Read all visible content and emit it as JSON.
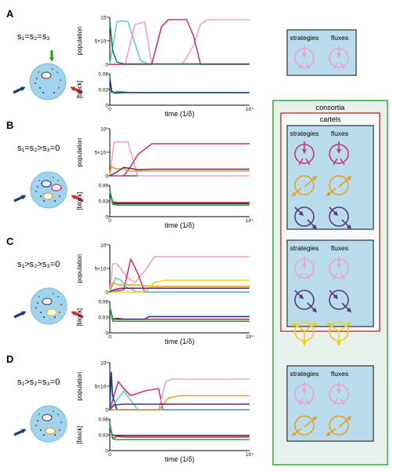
{
  "colors": {
    "pink": "#f0a0c8",
    "magenta": "#c8367a",
    "cyan": "#66cccc",
    "orange": "#e6a020",
    "yellow": "#f2cc1a",
    "purple": "#5a3a78",
    "darkgreen": "#1a8040",
    "red": "#d22b2b",
    "navy": "#1e3a8a",
    "green_block": "#2aa12a",
    "box_fill": "#b8dced",
    "box_stroke": "#333333",
    "consortia_fill": "#e7f2ec",
    "consortia_stroke": "#2aa12a",
    "cartels_stroke": "#d92b2b",
    "cell_fill": "#9fd3ee"
  },
  "panels": [
    {
      "letter": "A",
      "condition": "s₁=s₂=s₃"
    },
    {
      "letter": "B",
      "condition": "s₁=s₂>s₃=0"
    },
    {
      "letter": "C",
      "condition": "s₁>s₂>s₃=0"
    },
    {
      "letter": "D",
      "condition": "s₁>s₂=s₃=0"
    }
  ],
  "axes": {
    "population_label": "population",
    "block_label": "[block]",
    "time_label": "time (1/δ)",
    "x_tick_zero": "0",
    "x_tick_max": "10⁴",
    "pop_tick_top": "10⁵",
    "pop_tick_mid": "5×10⁴",
    "pop_tick_zero": "0",
    "block_tick_top": "0.06",
    "block_tick_mid": "0.03",
    "block_tick_zero": "0"
  },
  "legend": {
    "consortia": "consortia",
    "cartels": "cartels",
    "strategies": "strategies",
    "fluxes": "fluxes"
  },
  "chart_data": [
    {
      "type": "line",
      "panel": "A",
      "plot": "population",
      "xlim": [
        0,
        10000
      ],
      "ylim": [
        0,
        100000
      ],
      "series": [
        {
          "color": "cyan",
          "x": [
            0,
            500,
            700,
            1100,
            1300,
            2200,
            2800,
            10000
          ],
          "y": [
            0,
            90000,
            92000,
            92000,
            90000,
            8000,
            0,
            0
          ]
        },
        {
          "color": "pink",
          "x": [
            0,
            1100,
            1800,
            2500,
            3000,
            10000
          ],
          "y": [
            0,
            0,
            85000,
            90000,
            0,
            0
          ]
        },
        {
          "color": "pink",
          "x": [
            0,
            5200,
            6000,
            6500,
            7000,
            10000
          ],
          "y": [
            0,
            0,
            40000,
            85000,
            95000,
            95000
          ]
        },
        {
          "color": "magenta",
          "x": [
            0,
            3000,
            3700,
            4200,
            5500,
            6000,
            6500,
            10000
          ],
          "y": [
            0,
            0,
            80000,
            95000,
            95000,
            60000,
            0,
            0
          ]
        },
        {
          "color": "darkgreen",
          "x": [
            0,
            200,
            500,
            1000,
            10000
          ],
          "y": [
            90000,
            30000,
            5000,
            1000,
            1000
          ]
        }
      ]
    },
    {
      "type": "line",
      "panel": "A",
      "plot": "block",
      "xlim": [
        0,
        10000
      ],
      "ylim": [
        0,
        0.06
      ],
      "series": [
        {
          "color": "green_block",
          "x": [
            0,
            120,
            300,
            600,
            1500,
            3000,
            10000
          ],
          "y": [
            0.055,
            0.025,
            0.024,
            0.026,
            0.024,
            0.024,
            0.024
          ]
        },
        {
          "color": "navy",
          "x": [
            0,
            150,
            400,
            1000,
            10000
          ],
          "y": [
            0.05,
            0.026,
            0.023,
            0.024,
            0.024
          ]
        }
      ]
    },
    {
      "type": "line",
      "panel": "B",
      "plot": "population",
      "xlim": [
        0,
        10000
      ],
      "ylim": [
        0,
        100000
      ],
      "series": [
        {
          "color": "pink",
          "x": [
            0,
            300,
            500,
            1300,
            2000,
            10000
          ],
          "y": [
            0,
            70000,
            72000,
            72000,
            0,
            0
          ]
        },
        {
          "color": "magenta",
          "x": [
            0,
            1000,
            1500,
            2000,
            3000,
            10000
          ],
          "y": [
            0,
            0,
            20000,
            45000,
            68000,
            68000
          ]
        },
        {
          "color": "orange",
          "x": [
            0,
            100,
            400,
            1000,
            1400,
            10000
          ],
          "y": [
            0,
            20000,
            15000,
            15000,
            10000,
            10000
          ]
        },
        {
          "color": "purple",
          "x": [
            0,
            500,
            1000,
            2000,
            3000,
            10000
          ],
          "y": [
            0,
            8000,
            18000,
            13000,
            14000,
            14000
          ]
        }
      ]
    },
    {
      "type": "line",
      "panel": "B",
      "plot": "block",
      "xlim": [
        0,
        10000
      ],
      "ylim": [
        0,
        0.06
      ],
      "series": [
        {
          "color": "red",
          "x": [
            0,
            200,
            500,
            1500,
            10000
          ],
          "y": [
            0.05,
            0.028,
            0.027,
            0.027,
            0.027
          ]
        },
        {
          "color": "navy",
          "x": [
            0,
            200,
            500,
            10000
          ],
          "y": [
            0.045,
            0.026,
            0.025,
            0.025
          ]
        },
        {
          "color": "green_block",
          "x": [
            0,
            200,
            500,
            10000
          ],
          "y": [
            0.05,
            0.024,
            0.022,
            0.022
          ]
        }
      ]
    },
    {
      "type": "line",
      "panel": "C",
      "plot": "population",
      "xlim": [
        0,
        10000
      ],
      "ylim": [
        0,
        100000
      ],
      "series": [
        {
          "color": "pink",
          "x": [
            0,
            200,
            500,
            1300,
            1800,
            2500,
            3200,
            10000
          ],
          "y": [
            0,
            60000,
            60000,
            30000,
            20000,
            45000,
            75000,
            75000
          ]
        },
        {
          "color": "magenta",
          "x": [
            0,
            1000,
            1500,
            2000,
            2500,
            10000
          ],
          "y": [
            0,
            5000,
            70000,
            40000,
            0,
            0
          ]
        },
        {
          "color": "cyan",
          "x": [
            0,
            400,
            800,
            1200,
            2000,
            10000
          ],
          "y": [
            0,
            30000,
            25000,
            10000,
            0,
            0
          ]
        },
        {
          "color": "orange",
          "x": [
            0,
            200,
            600,
            2000,
            3000,
            10000
          ],
          "y": [
            0,
            20000,
            15000,
            15000,
            12000,
            12000
          ]
        },
        {
          "color": "yellow",
          "x": [
            0,
            2500,
            3200,
            4000,
            10000
          ],
          "y": [
            0,
            0,
            20000,
            25000,
            25000
          ]
        },
        {
          "color": "purple",
          "x": [
            0,
            300,
            800,
            3000,
            10000
          ],
          "y": [
            0,
            5000,
            8000,
            8000,
            8000
          ]
        }
      ]
    },
    {
      "type": "line",
      "panel": "C",
      "plot": "block",
      "xlim": [
        0,
        10000
      ],
      "ylim": [
        0,
        0.06
      ],
      "series": [
        {
          "color": "red",
          "x": [
            0,
            200,
            500,
            1000,
            10000
          ],
          "y": [
            0.05,
            0.025,
            0.028,
            0.026,
            0.026
          ]
        },
        {
          "color": "navy",
          "x": [
            0,
            200,
            500,
            2500,
            2800,
            10000
          ],
          "y": [
            0.05,
            0.027,
            0.026,
            0.026,
            0.031,
            0.031
          ]
        },
        {
          "color": "green_block",
          "x": [
            0,
            200,
            400,
            10000
          ],
          "y": [
            0.05,
            0.023,
            0.022,
            0.022
          ]
        }
      ]
    },
    {
      "type": "line",
      "panel": "D",
      "plot": "population",
      "xlim": [
        0,
        10000
      ],
      "ylim": [
        0,
        100000
      ],
      "series": [
        {
          "color": "magenta",
          "x": [
            0,
            300,
            600,
            1000,
            1500,
            2500,
            3500,
            3800,
            10000
          ],
          "y": [
            0,
            30000,
            60000,
            45000,
            30000,
            40000,
            45000,
            0,
            0
          ]
        },
        {
          "color": "pink",
          "x": [
            0,
            3500,
            4000,
            4500,
            10000
          ],
          "y": [
            0,
            0,
            60000,
            65000,
            65000
          ]
        },
        {
          "color": "navy",
          "x": [
            0,
            100,
            200,
            500,
            10000
          ],
          "y": [
            0,
            80000,
            30000,
            0,
            0
          ]
        },
        {
          "color": "cyan",
          "x": [
            0,
            500,
            1000,
            1500,
            2000,
            10000
          ],
          "y": [
            0,
            20000,
            40000,
            20000,
            0,
            0
          ]
        },
        {
          "color": "orange",
          "x": [
            0,
            3500,
            4200,
            5000,
            10000
          ],
          "y": [
            0,
            0,
            25000,
            30000,
            30000
          ]
        },
        {
          "color": "purple",
          "x": [
            0,
            300,
            1000,
            10000
          ],
          "y": [
            0,
            10000,
            12000,
            12000
          ]
        }
      ]
    },
    {
      "type": "line",
      "panel": "D",
      "plot": "block",
      "xlim": [
        0,
        10000
      ],
      "ylim": [
        0,
        0.06
      ],
      "series": [
        {
          "color": "navy",
          "x": [
            0,
            150,
            400,
            10000
          ],
          "y": [
            0.05,
            0.03,
            0.029,
            0.029
          ]
        },
        {
          "color": "red",
          "x": [
            0,
            200,
            500,
            1000,
            10000
          ],
          "y": [
            0.05,
            0.023,
            0.027,
            0.026,
            0.026
          ]
        },
        {
          "color": "green_block",
          "x": [
            0,
            200,
            400,
            10000
          ],
          "y": [
            0.05,
            0.023,
            0.021,
            0.021
          ]
        }
      ]
    }
  ]
}
